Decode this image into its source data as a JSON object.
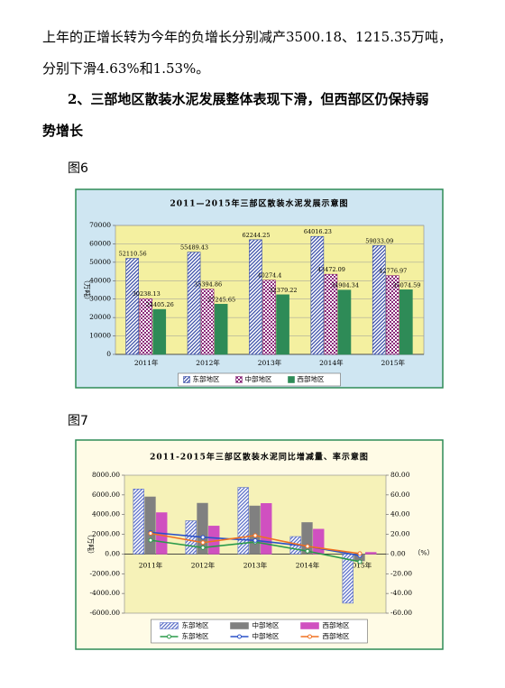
{
  "paragraph": [
    "上年的正增长转为今年的负增长分别减产3500.18、1215.35万吨，",
    "分别下滑4.63%和1.53%。"
  ],
  "heading": [
    "2、三部地区散装水泥发展整体表现下滑，但西部区仍保持弱",
    "势增长"
  ],
  "figures": [
    {
      "label": "图6"
    },
    {
      "label": "图7"
    }
  ],
  "chart_data": [
    {
      "type": "bar",
      "title": "2011—2015年三部区散装水泥发展示意图",
      "y_label": "（万吨）",
      "categories": [
        "2011年",
        "2012年",
        "2013年",
        "2014年",
        "2015年"
      ],
      "series": [
        {
          "name": "东部地区",
          "color": "#3b4fa8",
          "values": [
            52110.56,
            55489.43,
            62244.25,
            64016.23,
            59033.09
          ]
        },
        {
          "name": "中部地区",
          "color": "#8a2a7a",
          "values": [
            30238.13,
            35394.86,
            40274.4,
            43472.09,
            42776.97
          ]
        },
        {
          "name": "西部地区",
          "color": "#2e8b57",
          "values": [
            24405.26,
            27245.65,
            32379.22,
            34904.34,
            35074.59
          ]
        }
      ],
      "ylim": [
        0,
        70000
      ],
      "yticks": [
        0,
        10000,
        20000,
        30000,
        40000,
        50000,
        60000,
        70000
      ],
      "grid": true
    },
    {
      "type": "combo",
      "title": "2011-2015年三部区散装水泥同比增减量、率示意图",
      "y_label": "（万吨）",
      "y2_label": "（%）",
      "categories": [
        "2011年",
        "2012年",
        "2013年",
        "2014年",
        "2015年"
      ],
      "series": [
        {
          "name": "东部地区",
          "color": "#5b6fc8",
          "values": [
            6600,
            3379,
            6755,
            1772,
            -4983
          ]
        },
        {
          "name": "中部地区",
          "color": "#808080",
          "values": [
            5800,
            5157,
            4880,
            3198,
            -695
          ]
        },
        {
          "name": "西部地区",
          "color": "#d050c0",
          "values": [
            4200,
            2840,
            5134,
            2525,
            170
          ]
        },
        {
          "name": "东部地区",
          "color": "#2a9a4a",
          "axis": "y2",
          "values": [
            14,
            6.5,
            12.2,
            2.9,
            -7.8
          ]
        },
        {
          "name": "中部地区",
          "color": "#2a50c8",
          "axis": "y2",
          "values": [
            22,
            17,
            13.8,
            7.9,
            -1.6
          ]
        },
        {
          "name": "西部地区",
          "color": "#f07020",
          "axis": "y2",
          "values": [
            21,
            11.6,
            18.8,
            7.8,
            0.5
          ]
        }
      ],
      "ylim": [
        -6000,
        8000
      ],
      "yticks": [
        {
          "value": -6000,
          "label": "-6000.00"
        },
        {
          "value": -4000,
          "label": "-4000.00"
        },
        {
          "value": -2000,
          "label": "-2000.00"
        },
        {
          "value": 0,
          "label": "0.00"
        },
        {
          "value": 2000,
          "label": "2000.00"
        },
        {
          "value": 4000,
          "label": "4000.00"
        },
        {
          "value": 6000,
          "label": "6000.00"
        },
        {
          "value": 8000,
          "label": "8000.00"
        }
      ],
      "y2lim": [
        -60,
        80
      ],
      "y2ticks": [
        {
          "value": -60,
          "label": "-60.00"
        },
        {
          "value": -40,
          "label": "-40.00"
        },
        {
          "value": -20,
          "label": "-20.00"
        },
        {
          "value": 0,
          "label": "0.00"
        },
        {
          "value": 20,
          "label": "20.00"
        },
        {
          "value": 40,
          "label": "40.00"
        },
        {
          "value": 60,
          "label": "60.00"
        },
        {
          "value": 80,
          "label": "80.00"
        }
      ],
      "grid": false
    }
  ]
}
